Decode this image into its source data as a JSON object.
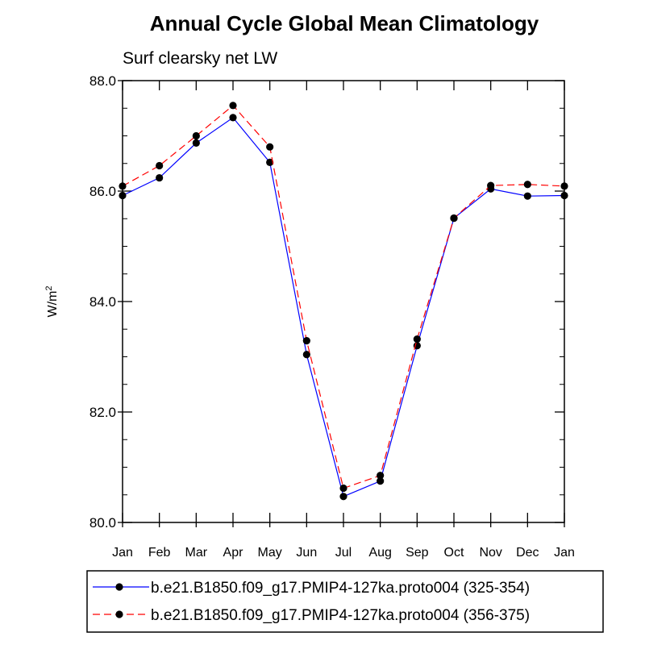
{
  "chart_data": {
    "type": "line",
    "title": "Annual Cycle Global Mean Climatology",
    "subtitle": "Surf clearsky net LW",
    "ylabel": "W/m",
    "ylabel_superscript": "2",
    "xlabel": "",
    "ylim": [
      80.0,
      88.0
    ],
    "yticks": [
      "80.0",
      "82.0",
      "84.0",
      "86.0",
      "88.0"
    ],
    "yticks_values": [
      80,
      82,
      84,
      86,
      88
    ],
    "categories": [
      "Jan",
      "Feb",
      "Mar",
      "Apr",
      "May",
      "Jun",
      "Jul",
      "Aug",
      "Sep",
      "Oct",
      "Nov",
      "Dec",
      "Jan"
    ],
    "legend_position": "bottom",
    "series": [
      {
        "name": "b.e21.B1850.f09_g17.PMIP4-127ka.proto004 (325-354)",
        "color": "#0000ff",
        "dash": "solid",
        "values": [
          85.92,
          86.24,
          86.87,
          87.33,
          86.52,
          83.04,
          80.47,
          80.75,
          83.2,
          85.51,
          86.04,
          85.91,
          85.92
        ]
      },
      {
        "name": "b.e21.B1850.f09_g17.PMIP4-127ka.proto004 (356-375)",
        "color": "#ff0000",
        "dash": "dashed",
        "values": [
          86.09,
          86.46,
          87.0,
          87.55,
          86.8,
          83.29,
          80.62,
          80.85,
          83.32,
          85.51,
          86.1,
          86.12,
          86.09
        ]
      }
    ]
  }
}
